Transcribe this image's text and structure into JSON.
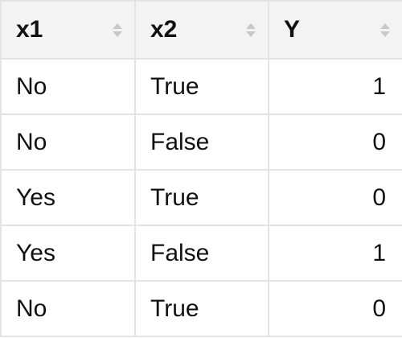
{
  "table": {
    "columns": [
      {
        "label": "x1",
        "sort_icon": "sort-updown-icon"
      },
      {
        "label": "x2",
        "sort_icon": "sort-updown-icon"
      },
      {
        "label": "Y",
        "sort_icon": "sort-updown-icon"
      }
    ],
    "rows": [
      [
        "No",
        "True",
        "1"
      ],
      [
        "No",
        "False",
        "0"
      ],
      [
        "Yes",
        "True",
        "0"
      ],
      [
        "Yes",
        "False",
        "1"
      ],
      [
        "No",
        "True",
        "0"
      ]
    ]
  },
  "colors": {
    "header_background": "#f3f3f3",
    "border": "#e3e3e3",
    "sort_icon": "#c8c8c8",
    "text": "#111111"
  }
}
